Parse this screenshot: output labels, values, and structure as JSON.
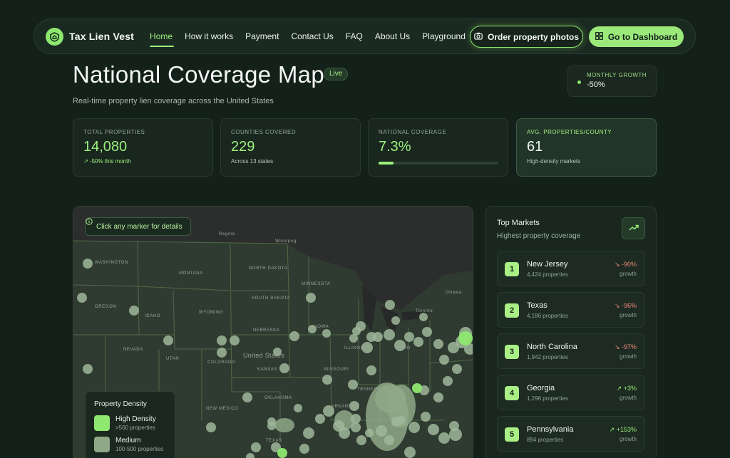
{
  "nav": {
    "brand": "Tax Lien Vest",
    "links": [
      "Home",
      "How it works",
      "Payment",
      "Contact Us",
      "FAQ",
      "About Us",
      "Playground"
    ],
    "order_button": "Order property photos",
    "dashboard_button": "Go to Dashboard"
  },
  "header": {
    "title": "National Coverage Map",
    "live": "Live",
    "subtitle": "Real-time property lien coverage across the United States",
    "growth_label": "MONTHLY GROWTH",
    "growth_value": "-50%"
  },
  "stats": [
    {
      "label": "TOTAL PROPERTIES",
      "value": "14,080",
      "note": "-50% this month"
    },
    {
      "label": "COUNTIES COVERED",
      "value": "229",
      "note": "Across 13 states"
    },
    {
      "label": "NATIONAL COVERAGE",
      "value": "7.3%",
      "progress": 0.073
    },
    {
      "label": "AVG. PROPERTIES/COUNTY",
      "value": "61",
      "note": "High-density markets"
    }
  ],
  "map": {
    "hint": "Click any marker for details",
    "place_labels": [
      "Regina",
      "Winnipeg",
      "Ottawa",
      "Toronto",
      "MONTANA",
      "NORTH DAKOTA",
      "MINNESOTA",
      "SOUTH DAKOTA",
      "OREGON",
      "IDAHO",
      "WYOMING",
      "NEBRASKA",
      "NEVADA",
      "UTAH",
      "COLORADO",
      "KANSAS",
      "United States",
      "OKLAHOMA",
      "NEW MEXICO",
      "TEXAS",
      "WASHINGTON",
      "IOWA",
      "MISSOURI",
      "ARKANSAS",
      "TENNESSEE",
      "ILLINOIS",
      "OHIO"
    ],
    "legend": {
      "title": "Property Density",
      "items": [
        {
          "name": "High Density",
          "range": ">500 properties",
          "color": "#8fe870"
        },
        {
          "name": "Medium",
          "range": "100-500 properties",
          "color": "#8fa887"
        }
      ]
    }
  },
  "markets": {
    "title": "Top Markets",
    "subtitle": "Highest property coverage",
    "items": [
      {
        "rank": "1",
        "name": "New Jersey",
        "properties": "4,424 properties",
        "change": "-90%",
        "growth": "growth",
        "direction": "neg"
      },
      {
        "rank": "2",
        "name": "Texas",
        "properties": "4,186 properties",
        "change": "-96%",
        "growth": "growth",
        "direction": "neg"
      },
      {
        "rank": "3",
        "name": "North Carolina",
        "properties": "1,942 properties",
        "change": "-97%",
        "growth": "growth",
        "direction": "neg"
      },
      {
        "rank": "4",
        "name": "Georgia",
        "properties": "1,296 properties",
        "change": "+3%",
        "growth": "growth",
        "direction": "pos"
      },
      {
        "rank": "5",
        "name": "Pennsylvania",
        "properties": "894 properties",
        "change": "+153%",
        "growth": "growth",
        "direction": "pos"
      }
    ]
  },
  "colors": {
    "accent": "#9cf07c",
    "background": "#14201a",
    "negative": "#f08a7d"
  }
}
